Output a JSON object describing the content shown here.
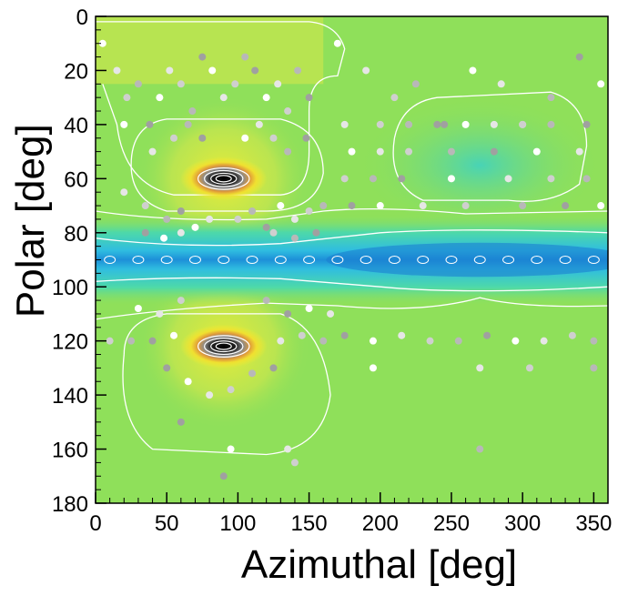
{
  "chart_data": {
    "type": "heatmap",
    "title": "",
    "xlabel": "Azimuthal [deg]",
    "ylabel": "Polar [deg]",
    "xlim": [
      0,
      360
    ],
    "ylim": [
      180,
      0
    ],
    "y_axis_inverted": true,
    "x_ticks": [
      "0",
      "50",
      "100",
      "150",
      "200",
      "250",
      "300",
      "350"
    ],
    "x_tick_values": [
      0,
      50,
      100,
      150,
      200,
      250,
      300,
      350
    ],
    "y_ticks": [
      "0",
      "20",
      "40",
      "60",
      "80",
      "100",
      "120",
      "140",
      "160",
      "180"
    ],
    "y_tick_values": [
      0,
      20,
      40,
      60,
      80,
      100,
      120,
      140,
      160,
      180
    ],
    "colormap": [
      "#f0ec32",
      "#8fe05a",
      "#4ed9a8",
      "#2fbde0",
      "#1d8fd8"
    ],
    "background_color": "#8fe05a",
    "contour_color": "#ffffff",
    "grid": false,
    "legend": "none",
    "hotspots": [
      {
        "azimuth": 90,
        "polar": 60,
        "peak": "black"
      },
      {
        "azimuth": 90,
        "polar": 122,
        "peak": "black"
      }
    ],
    "low_band": {
      "polar": 90,
      "azimuth_range": [
        0,
        360
      ],
      "deepest_azimuth": 270
    },
    "scatter_points": [
      [
        5,
        10
      ],
      [
        15,
        20
      ],
      [
        22,
        30
      ],
      [
        30,
        25
      ],
      [
        38,
        40
      ],
      [
        45,
        30
      ],
      [
        52,
        20
      ],
      [
        60,
        25
      ],
      [
        68,
        35
      ],
      [
        75,
        15
      ],
      [
        82,
        20
      ],
      [
        90,
        30
      ],
      [
        98,
        25
      ],
      [
        105,
        15
      ],
      [
        112,
        20
      ],
      [
        120,
        30
      ],
      [
        128,
        25
      ],
      [
        135,
        35
      ],
      [
        142,
        20
      ],
      [
        150,
        30
      ],
      [
        20,
        40
      ],
      [
        40,
        50
      ],
      [
        55,
        45
      ],
      [
        65,
        40
      ],
      [
        75,
        45
      ],
      [
        105,
        45
      ],
      [
        115,
        40
      ],
      [
        125,
        45
      ],
      [
        135,
        50
      ],
      [
        148,
        45
      ],
      [
        170,
        10
      ],
      [
        190,
        20
      ],
      [
        210,
        30
      ],
      [
        225,
        25
      ],
      [
        245,
        40
      ],
      [
        265,
        20
      ],
      [
        285,
        25
      ],
      [
        300,
        40
      ],
      [
        320,
        30
      ],
      [
        340,
        15
      ],
      [
        355,
        25
      ],
      [
        175,
        40
      ],
      [
        200,
        40
      ],
      [
        220,
        40
      ],
      [
        240,
        40
      ],
      [
        260,
        40
      ],
      [
        280,
        40
      ],
      [
        300,
        40
      ],
      [
        320,
        40
      ],
      [
        345,
        40
      ],
      [
        180,
        50
      ],
      [
        200,
        50
      ],
      [
        220,
        50
      ],
      [
        250,
        50
      ],
      [
        280,
        50
      ],
      [
        310,
        50
      ],
      [
        340,
        50
      ],
      [
        175,
        60
      ],
      [
        195,
        60
      ],
      [
        215,
        60
      ],
      [
        250,
        60
      ],
      [
        290,
        60
      ],
      [
        320,
        60
      ],
      [
        345,
        60
      ],
      [
        180,
        70
      ],
      [
        200,
        70
      ],
      [
        230,
        70
      ],
      [
        260,
        70
      ],
      [
        300,
        70
      ],
      [
        330,
        70
      ],
      [
        355,
        70
      ],
      [
        20,
        65
      ],
      [
        35,
        70
      ],
      [
        50,
        75
      ],
      [
        60,
        72
      ],
      [
        70,
        78
      ],
      [
        80,
        75
      ],
      [
        100,
        75
      ],
      [
        110,
        72
      ],
      [
        120,
        78
      ],
      [
        130,
        70
      ],
      [
        140,
        75
      ],
      [
        150,
        72
      ],
      [
        160,
        70
      ],
      [
        35,
        80
      ],
      [
        48,
        82
      ],
      [
        60,
        80
      ],
      [
        125,
        80
      ],
      [
        140,
        82
      ],
      [
        155,
        80
      ],
      [
        30,
        108
      ],
      [
        45,
        110
      ],
      [
        60,
        105
      ],
      [
        120,
        105
      ],
      [
        135,
        110
      ],
      [
        150,
        108
      ],
      [
        165,
        110
      ],
      [
        10,
        120
      ],
      [
        25,
        120
      ],
      [
        40,
        120
      ],
      [
        55,
        118
      ],
      [
        130,
        120
      ],
      [
        145,
        118
      ],
      [
        160,
        120
      ],
      [
        175,
        118
      ],
      [
        195,
        120
      ],
      [
        215,
        118
      ],
      [
        235,
        120
      ],
      [
        255,
        120
      ],
      [
        275,
        118
      ],
      [
        295,
        120
      ],
      [
        315,
        120
      ],
      [
        335,
        118
      ],
      [
        350,
        120
      ],
      [
        50,
        130
      ],
      [
        65,
        135
      ],
      [
        80,
        140
      ],
      [
        95,
        138
      ],
      [
        110,
        132
      ],
      [
        125,
        130
      ],
      [
        195,
        130
      ],
      [
        270,
        130
      ],
      [
        305,
        130
      ],
      [
        350,
        130
      ],
      [
        60,
        150
      ],
      [
        95,
        160
      ],
      [
        135,
        160
      ],
      [
        140,
        165
      ],
      [
        270,
        160
      ],
      [
        90,
        170
      ]
    ]
  }
}
